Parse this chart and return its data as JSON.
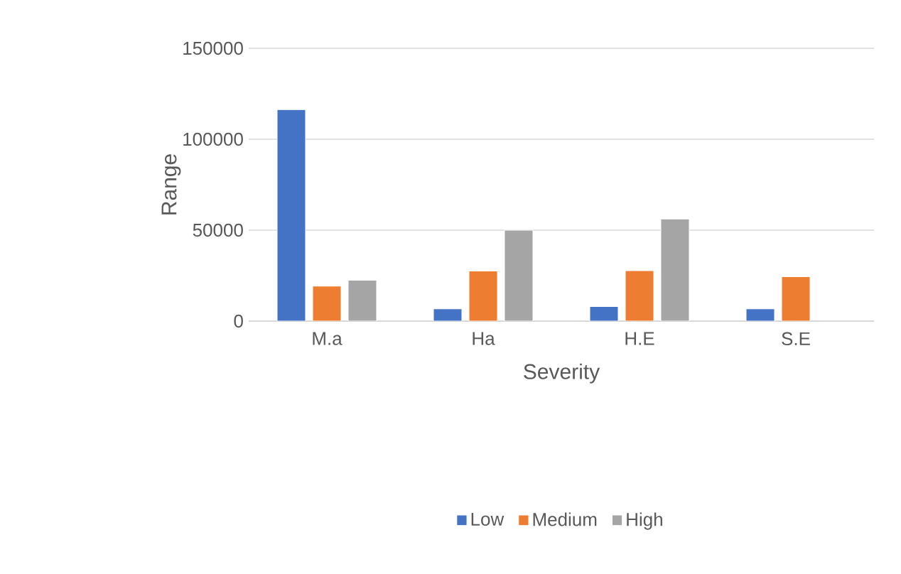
{
  "chart_data": {
    "type": "bar",
    "xlabel": "Severity",
    "ylabel": "Range",
    "categories": [
      "M.a",
      "Ha",
      "H.E",
      "S.E"
    ],
    "series": [
      {
        "name": "Low",
        "color": "#4472c4",
        "values": [
          116300,
          6700,
          8000,
          6700
        ]
      },
      {
        "name": "Medium",
        "color": "#ed7d31",
        "values": [
          19200,
          27500,
          27700,
          24400
        ]
      },
      {
        "name": "High",
        "color": "#a5a5a5",
        "values": [
          22500,
          50000,
          56200,
          null
        ]
      }
    ],
    "ylim": [
      0,
      150000
    ],
    "yticks": [
      0,
      50000,
      100000,
      150000
    ],
    "grid": "y",
    "legend": "bottom"
  }
}
